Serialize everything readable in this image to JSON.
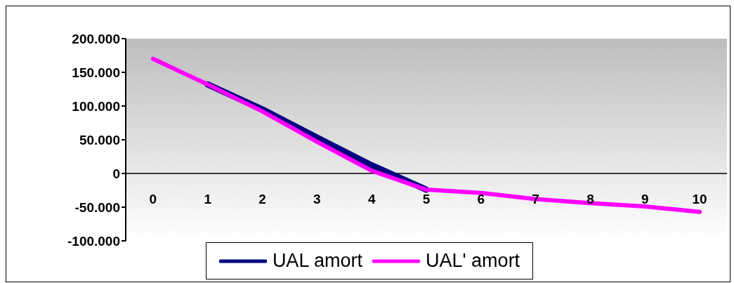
{
  "chart_data": {
    "type": "line",
    "categories": [
      "0",
      "1",
      "2",
      "3",
      "4",
      "5",
      "6",
      "7",
      "8",
      "9",
      "10"
    ],
    "series": [
      {
        "name": "UAL amort",
        "color": "#000080",
        "values": [
          null,
          132000,
          95000,
          53000,
          12000,
          -24000,
          null,
          null,
          null,
          null,
          null
        ]
      },
      {
        "name": "UAL' amort",
        "color": "#ff00ff",
        "values": [
          170000,
          132000,
          92000,
          47000,
          4000,
          -24000,
          -29000,
          -38000,
          -44000,
          -49000,
          -57000
        ]
      }
    ],
    "ylim": [
      -100000,
      200000
    ],
    "yticks": [
      {
        "value": -100000,
        "label": "-100.000"
      },
      {
        "value": -50000,
        "label": "-50.000"
      },
      {
        "value": 0,
        "label": "0"
      },
      {
        "value": 50000,
        "label": "50.000"
      },
      {
        "value": 100000,
        "label": "100.000"
      },
      {
        "value": 150000,
        "label": "150.000"
      },
      {
        "value": 200000,
        "label": "200.000"
      }
    ],
    "grid": false,
    "legend": "bottom",
    "marker": "none",
    "line_style": "solid"
  }
}
